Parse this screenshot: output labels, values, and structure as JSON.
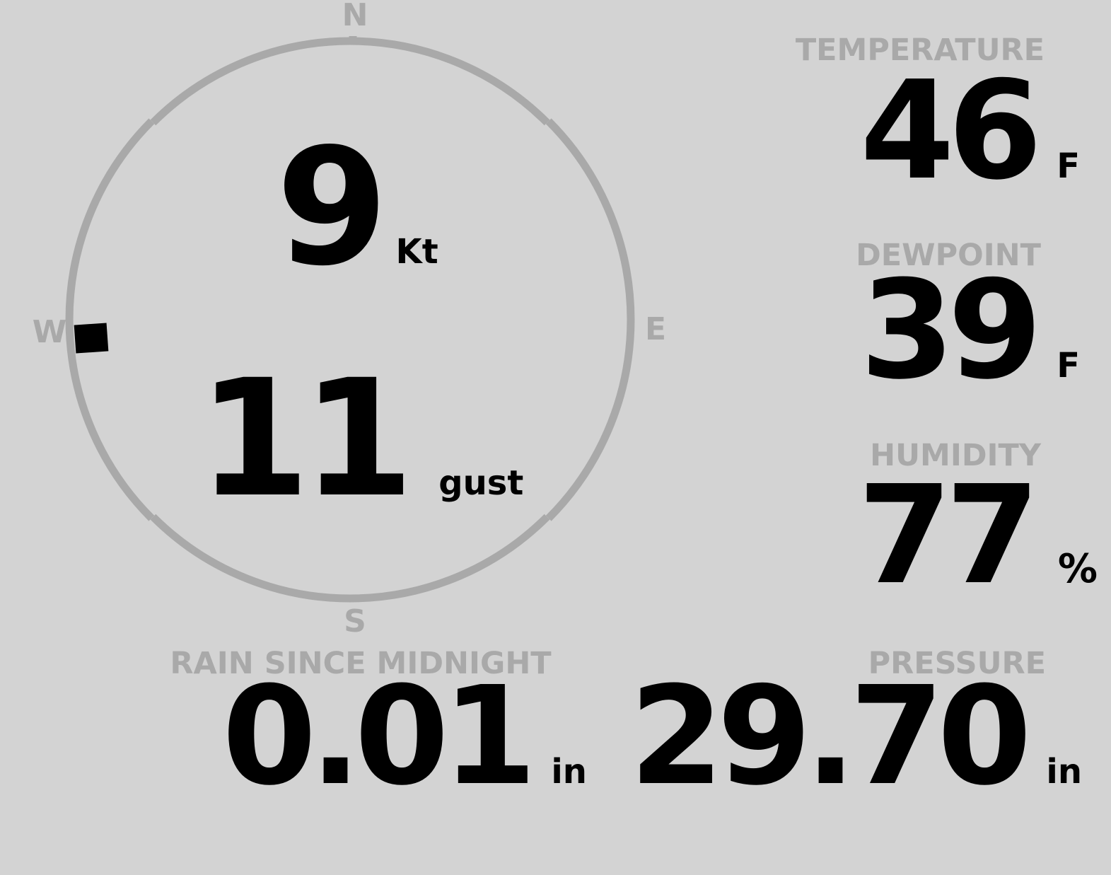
{
  "theme": {
    "background": "#d3d3d3",
    "muted": "#a9a9a9",
    "ink": "#000000"
  },
  "compass": {
    "cardinals": {
      "north": "N",
      "east": "E",
      "south": "S",
      "west": "W"
    },
    "wind_speed_value": "9",
    "wind_speed_unit": "Kt",
    "wind_gust_value": "11",
    "wind_gust_unit": "gust",
    "wind_direction_degrees": 266
  },
  "metrics": {
    "temperature": {
      "label": "TEMPERATURE",
      "value": "46",
      "unit": "F"
    },
    "dewpoint": {
      "label": "DEWPOINT",
      "value": "39",
      "unit": "F"
    },
    "humidity": {
      "label": "HUMIDITY",
      "value": "77",
      "unit": "%"
    },
    "rain_since_midnight": {
      "label": "RAIN SINCE MIDNIGHT",
      "value": "0.01",
      "unit": "in"
    },
    "pressure": {
      "label": "PRESSURE",
      "value": "29.70",
      "unit": "in"
    }
  }
}
